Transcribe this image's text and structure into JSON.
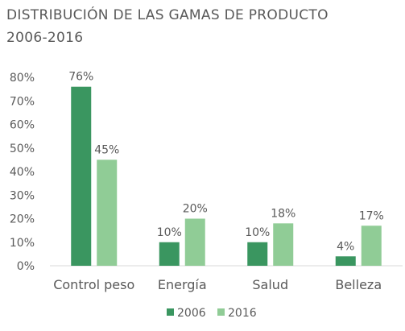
{
  "chart_data": {
    "type": "bar",
    "title_line1": "DISTRIBUCIÓN DE LAS GAMAS DE PRODUCTO",
    "title_line2": "2006-2016",
    "categories": [
      "Control peso",
      "Energía",
      "Salud",
      "Belleza"
    ],
    "series": [
      {
        "name": "2006",
        "values": [
          76,
          10,
          10,
          4
        ],
        "labels": [
          "76%",
          "10%",
          "10%",
          "4%"
        ],
        "color": "#3a9660"
      },
      {
        "name": "2016",
        "values": [
          45,
          20,
          18,
          17
        ],
        "labels": [
          "45%",
          "20%",
          "18%",
          "17%"
        ],
        "color": "#90cc96"
      }
    ],
    "y_ticks": [
      "0%",
      "10%",
      "20%",
      "30%",
      "40%",
      "50%",
      "60%",
      "70%",
      "80%"
    ],
    "ylim": [
      0,
      80
    ],
    "grid": false,
    "legend_position": "bottom"
  }
}
